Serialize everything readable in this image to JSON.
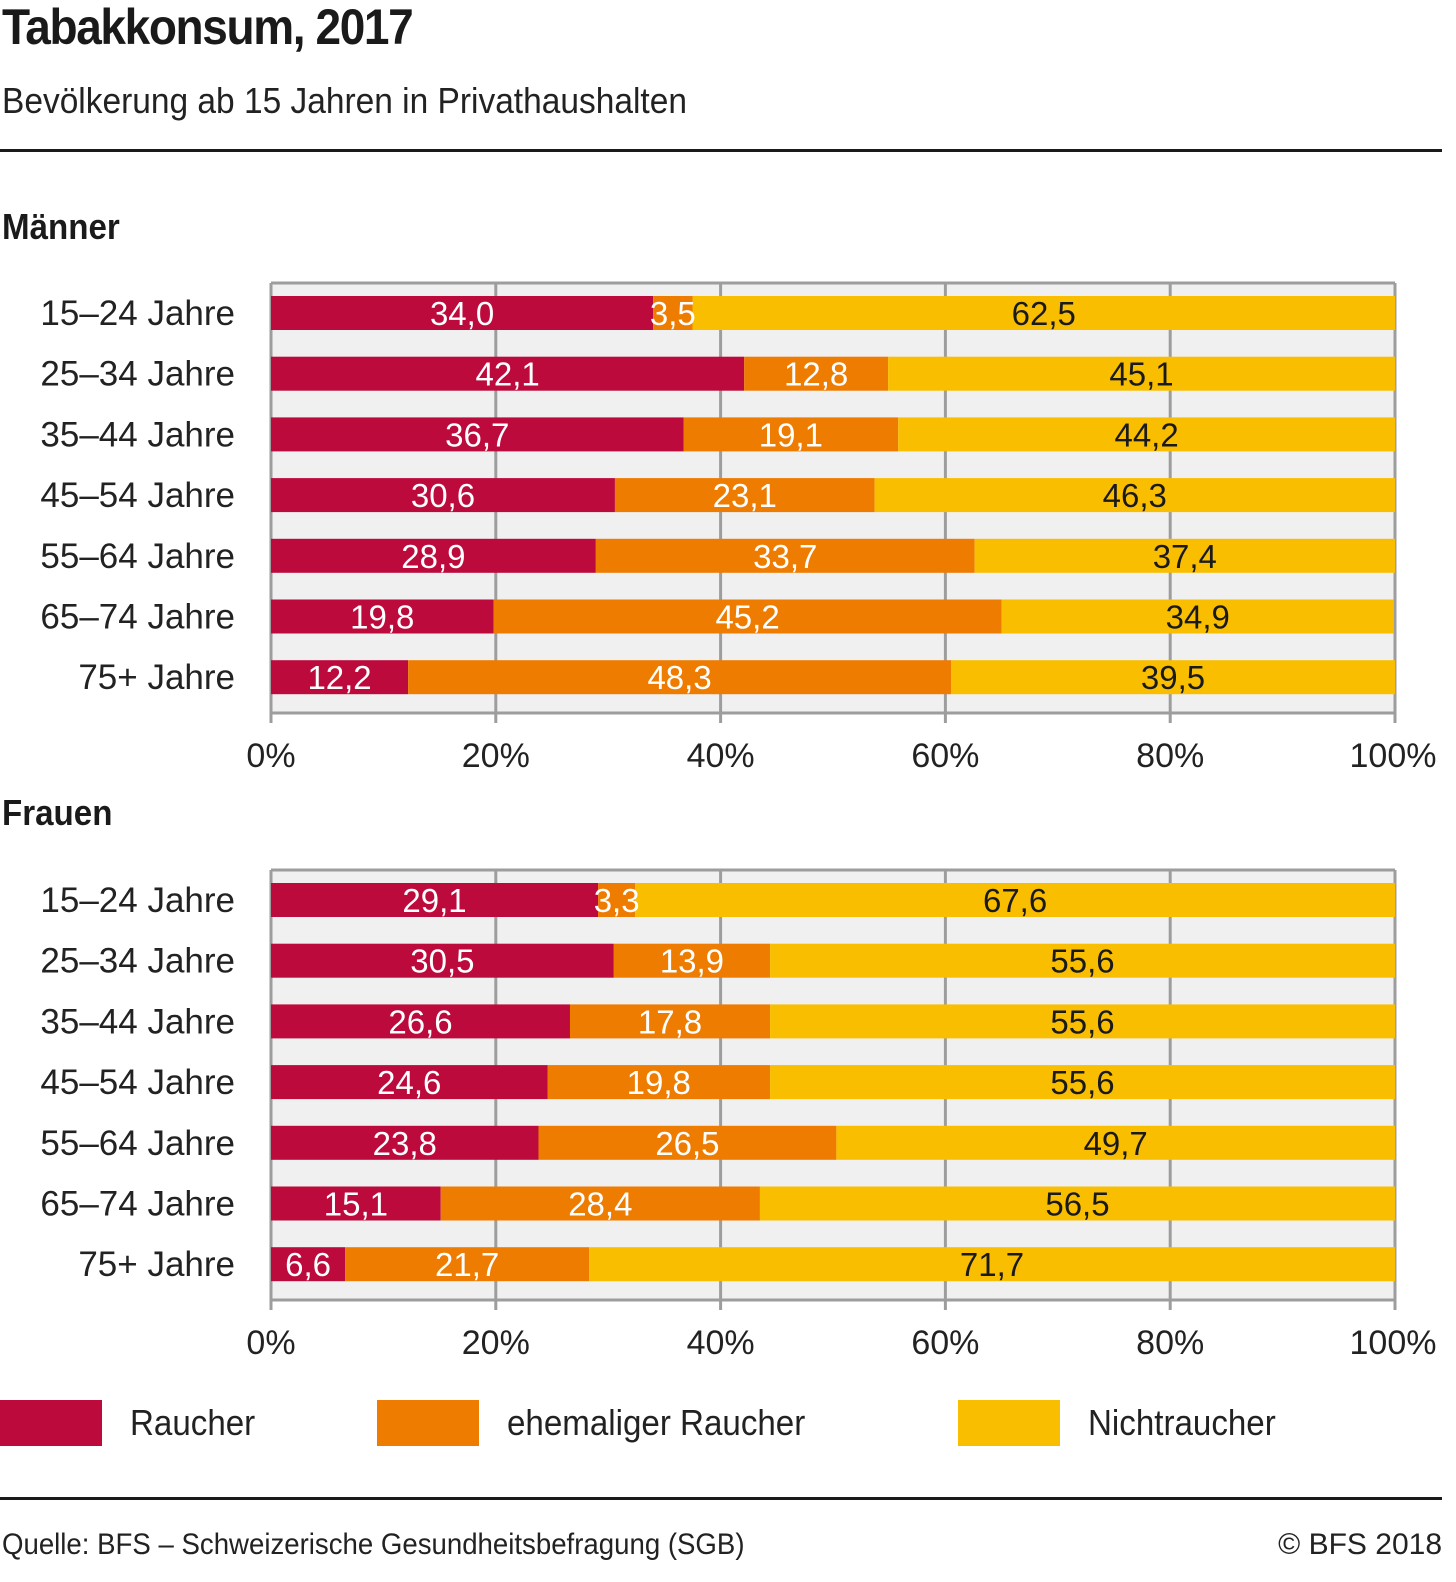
{
  "header": {
    "title": "Tabakkonsum, 2017",
    "subtitle": "Bevölkerung ab 15 Jahren in Privathaushalten"
  },
  "footer": {
    "source": "Quelle: BFS – Schweizerische Gesundheitsbefragung (SGB)",
    "copyright": "© BFS 2018"
  },
  "colors": {
    "raucher": "#bd0a3c",
    "ehemaliger_raucher": "#ee7c00",
    "nichtraucher": "#fabe00",
    "plot_background": "#f0f0f0",
    "gridline": "#9d9d9d"
  },
  "legend": {
    "position": "bottom",
    "items": [
      {
        "label": "Raucher",
        "color": "#bd0a3c"
      },
      {
        "label": "ehemaliger Raucher",
        "color": "#ee7c00"
      },
      {
        "label": "Nichtraucher",
        "color": "#fabe00"
      }
    ]
  },
  "chart_data": [
    {
      "type": "bar",
      "orientation": "horizontal",
      "stacked": true,
      "title": "Männer",
      "xlabel": "",
      "ylabel": "",
      "xlim": [
        0,
        100
      ],
      "x_ticks": [
        "0%",
        "20%",
        "40%",
        "60%",
        "80%",
        "100%"
      ],
      "grid": true,
      "categories": [
        "15–24 Jahre",
        "25–34 Jahre",
        "35–44 Jahre",
        "45–54 Jahre",
        "55–64 Jahre",
        "65–74 Jahre",
        "75+ Jahre"
      ],
      "series": [
        {
          "name": "Raucher",
          "values": [
            34.0,
            42.1,
            36.7,
            30.6,
            28.9,
            19.8,
            12.2
          ],
          "labels": [
            "34,0",
            "42,1",
            "36,7",
            "30,6",
            "28,9",
            "19,8",
            "12,2"
          ]
        },
        {
          "name": "ehemaliger Raucher",
          "values": [
            3.5,
            12.8,
            19.1,
            23.1,
            33.7,
            45.2,
            48.3
          ],
          "labels": [
            "3,5",
            "12,8",
            "19,1",
            "23,1",
            "33,7",
            "45,2",
            "48,3"
          ]
        },
        {
          "name": "Nichtraucher",
          "values": [
            62.5,
            45.1,
            44.2,
            46.3,
            37.4,
            34.9,
            39.5
          ],
          "labels": [
            "62,5",
            "45,1",
            "44,2",
            "46,3",
            "37,4",
            "34,9",
            "39,5"
          ]
        }
      ]
    },
    {
      "type": "bar",
      "orientation": "horizontal",
      "stacked": true,
      "title": "Frauen",
      "xlabel": "",
      "ylabel": "",
      "xlim": [
        0,
        100
      ],
      "x_ticks": [
        "0%",
        "20%",
        "40%",
        "60%",
        "80%",
        "100%"
      ],
      "grid": true,
      "categories": [
        "15–24 Jahre",
        "25–34 Jahre",
        "35–44 Jahre",
        "45–54 Jahre",
        "55–64 Jahre",
        "65–74 Jahre",
        "75+ Jahre"
      ],
      "series": [
        {
          "name": "Raucher",
          "values": [
            29.1,
            30.5,
            26.6,
            24.6,
            23.8,
            15.1,
            6.6
          ],
          "labels": [
            "29,1",
            "30,5",
            "26,6",
            "24,6",
            "23,8",
            "15,1",
            "6,6"
          ]
        },
        {
          "name": "ehemaliger Raucher",
          "values": [
            3.3,
            13.9,
            17.8,
            19.8,
            26.5,
            28.4,
            21.7
          ],
          "labels": [
            "3,3",
            "13,9",
            "17,8",
            "19,8",
            "26,5",
            "28,4",
            "21,7"
          ]
        },
        {
          "name": "Nichtraucher",
          "values": [
            67.6,
            55.6,
            55.6,
            55.6,
            49.7,
            56.5,
            71.7
          ],
          "labels": [
            "67,6",
            "55,6",
            "55,6",
            "55,6",
            "49,7",
            "56,5",
            "71,7"
          ]
        }
      ]
    }
  ]
}
